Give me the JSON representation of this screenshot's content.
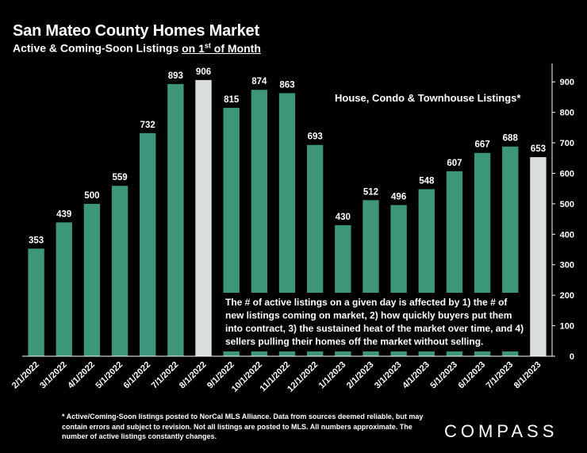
{
  "header": {
    "title": "San Mateo County Homes Market",
    "subtitle_prefix": "Active & Coming-Soon Listings ",
    "subtitle_underlined": "on 1",
    "subtitle_sup": "st",
    "subtitle_suffix": " of Month"
  },
  "chart_data": {
    "type": "bar",
    "categories": [
      "2/1/2022",
      "3/1/2022",
      "4/1/2022",
      "5/1/2022",
      "6/1/2022",
      "7/1/2022",
      "8/1/2022",
      "9/1/2022",
      "10/1/2022",
      "11/1/2022",
      "12/1/2022",
      "1/1/2023",
      "2/1/2023",
      "3/1/2023",
      "4/1/2023",
      "5/1/2023",
      "6/1/2023",
      "7/1/2023",
      "8/1/2023"
    ],
    "values": [
      353,
      439,
      500,
      559,
      732,
      893,
      906,
      815,
      874,
      863,
      693,
      430,
      512,
      496,
      548,
      607,
      667,
      688,
      653
    ],
    "data_labels": [
      "353",
      "439",
      "500",
      "559",
      "732",
      "893",
      "906",
      "815",
      "874",
      "863",
      "693",
      "430",
      "512",
      "496",
      "548",
      "607",
      "667",
      "688",
      "653"
    ],
    "highlighted": [
      "8/1/2022",
      "8/1/2023"
    ],
    "ylim": [
      0,
      950
    ],
    "yticks": [
      0,
      100,
      200,
      300,
      400,
      500,
      600,
      700,
      800,
      900
    ],
    "y_axis_side": "right",
    "grid": false,
    "bar_color": "#3d957a",
    "highlight_color": "#d9dedb",
    "title": "",
    "xlabel": "",
    "ylabel": ""
  },
  "annotations": {
    "series_label": "House, Condo & Townhouse Listings*",
    "note": "The # of active listings on a given day is affected by 1) the # of new listings coming on market, 2) how quickly buyers put them into contract, 3) the sustained heat of the market over time, and 4) sellers pulling their homes off the market without selling."
  },
  "footnote": "* Active/Coming-Soon listings posted to NorCal MLS Alliance.  Data from sources deemed reliable, but may contain errors and subject to revision.  Not all listings are posted to MLS. All numbers approximate. The number of active listings constantly changes.",
  "logo": "COMPASS"
}
